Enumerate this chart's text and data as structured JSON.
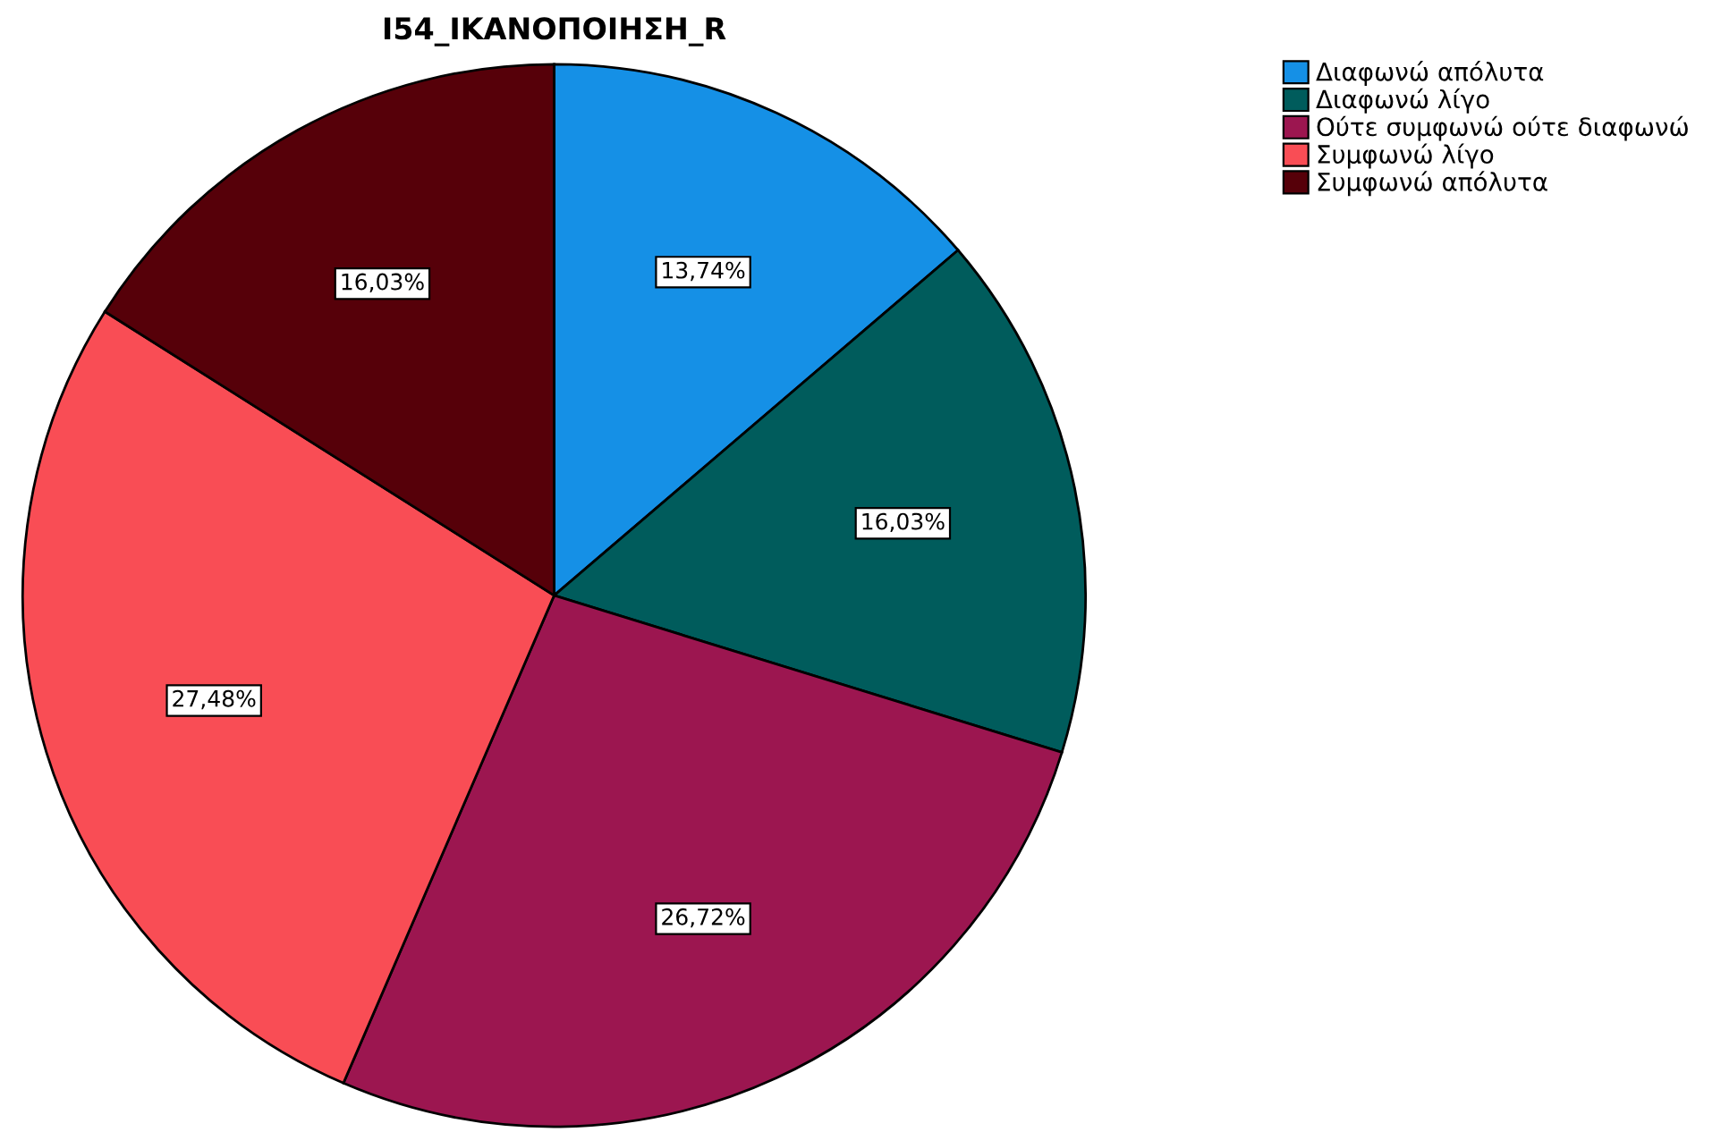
{
  "chart_data": {
    "type": "pie",
    "title": "I54_ΙΚΑΝΟΠΟΙΗΣΗ_R",
    "categories": [
      "Διαφωνώ απόλυτα",
      "Διαφωνώ λίγο",
      "Ούτε συμφωνώ ούτε διαφωνώ",
      "Συμφωνώ λίγο",
      "Συμφωνώ απόλυτα"
    ],
    "values": [
      13.74,
      16.03,
      26.72,
      27.48,
      16.03
    ],
    "value_labels": [
      "13,74%",
      "16,03%",
      "26,72%",
      "27,48%",
      "16,03%"
    ],
    "colors": [
      "#1590e6",
      "#005c5c",
      "#9c1650",
      "#f94d55",
      "#560009"
    ],
    "legend": "top right"
  }
}
